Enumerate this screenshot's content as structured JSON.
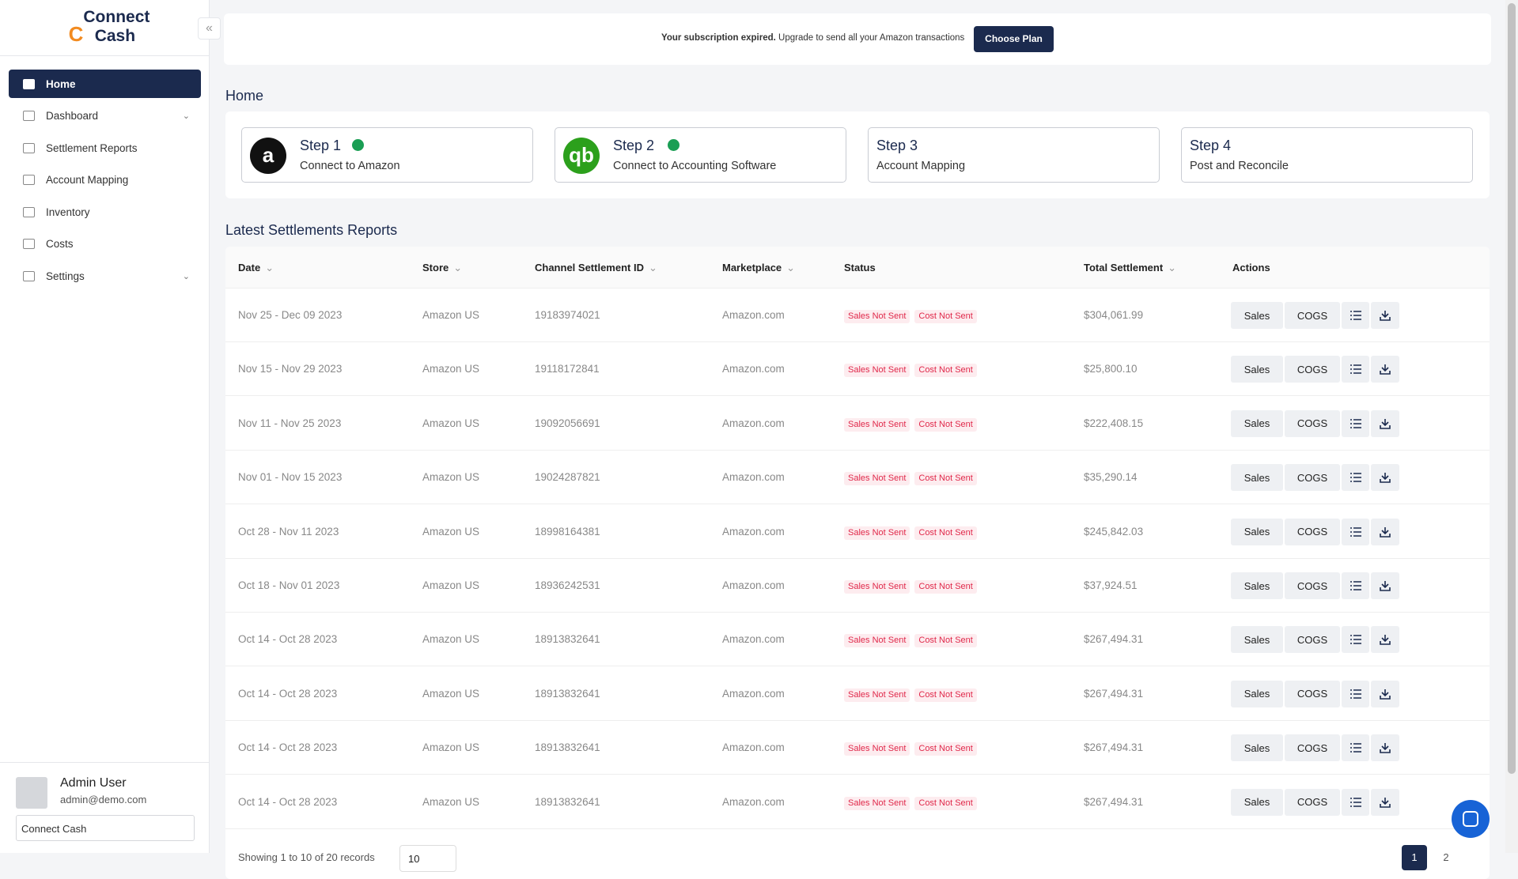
{
  "sidebar": {
    "logo": "Connect Cash",
    "nav": [
      "Home",
      "Dashboard",
      "Settlement Reports",
      "Account Mapping",
      "Inventory",
      "Costs",
      "Settings"
    ],
    "user": {
      "name": "Admin User",
      "email": "admin@demo.com",
      "company": "Connect Cash"
    }
  },
  "banner": {
    "bold": "Your subscription expired.",
    "text": "Upgrade to send all your Amazon transactions",
    "button": "Choose Plan"
  },
  "page_title": "Home",
  "steps": [
    {
      "title": "Step 1",
      "subtitle": "Connect to Amazon"
    },
    {
      "title": "Step 2",
      "subtitle": "Connect to Accounting Software"
    },
    {
      "title": "Step 3",
      "subtitle": "Account Mapping"
    },
    {
      "title": "Step 4",
      "subtitle": "Post and Reconcile"
    }
  ],
  "table": {
    "title": "Latest Settlements Reports",
    "headers": [
      "Date",
      "Store",
      "Channel Settlement ID",
      "Marketplace",
      "Status",
      "Total Settlement",
      "Actions"
    ],
    "action_labels": [
      "Sales",
      "COGS"
    ],
    "rows": [
      [
        "Nov 25 - Dec 09 2023",
        "Amazon US",
        "19183974021",
        "Amazon.com",
        [
          "Sales Not Sent",
          "Cost Not Sent"
        ],
        "$304,061.99"
      ],
      [
        "Nov 15 - Nov 29 2023",
        "Amazon US",
        "19118172841",
        "Amazon.com",
        [
          "Sales Not Sent",
          "Cost Not Sent"
        ],
        "$25,800.10"
      ],
      [
        "Nov 11 - Nov 25 2023",
        "Amazon US",
        "19092056691",
        "Amazon.com",
        [
          "Sales Not Sent",
          "Cost Not Sent"
        ],
        "$222,408.15"
      ],
      [
        "Nov 01 - Nov 15 2023",
        "Amazon US",
        "19024287821",
        "Amazon.com",
        [
          "Sales Not Sent",
          "Cost Not Sent"
        ],
        "$35,290.14"
      ],
      [
        "Oct 28 - Nov 11 2023",
        "Amazon US",
        "18998164381",
        "Amazon.com",
        [
          "Sales Not Sent",
          "Cost Not Sent"
        ],
        "$245,842.03"
      ],
      [
        "Oct 18 - Nov 01 2023",
        "Amazon US",
        "18936242531",
        "Amazon.com",
        [
          "Sales Not Sent",
          "Cost Not Sent"
        ],
        "$37,924.51"
      ],
      [
        "Oct 14 - Oct 28 2023",
        "Amazon US",
        "18913832641",
        "Amazon.com",
        [
          "Sales Not Sent",
          "Cost Not Sent"
        ],
        "$267,494.31"
      ],
      [
        "Oct 14 - Oct 28 2023",
        "Amazon US",
        "18913832641",
        "Amazon.com",
        [
          "Sales Not Sent",
          "Cost Not Sent"
        ],
        "$267,494.31"
      ],
      [
        "Oct 14 - Oct 28 2023",
        "Amazon US",
        "18913832641",
        "Amazon.com",
        [
          "Sales Not Sent",
          "Cost Not Sent"
        ],
        "$267,494.31"
      ],
      [
        "Oct 14 - Oct 28 2023",
        "Amazon US",
        "18913832641",
        "Amazon.com",
        [
          "Sales Not Sent",
          "Cost Not Sent"
        ],
        "$267,494.31"
      ]
    ],
    "footer": "Showing 1 to 10 of 20 records",
    "page_size": "10",
    "pages": [
      "1",
      "2"
    ]
  }
}
